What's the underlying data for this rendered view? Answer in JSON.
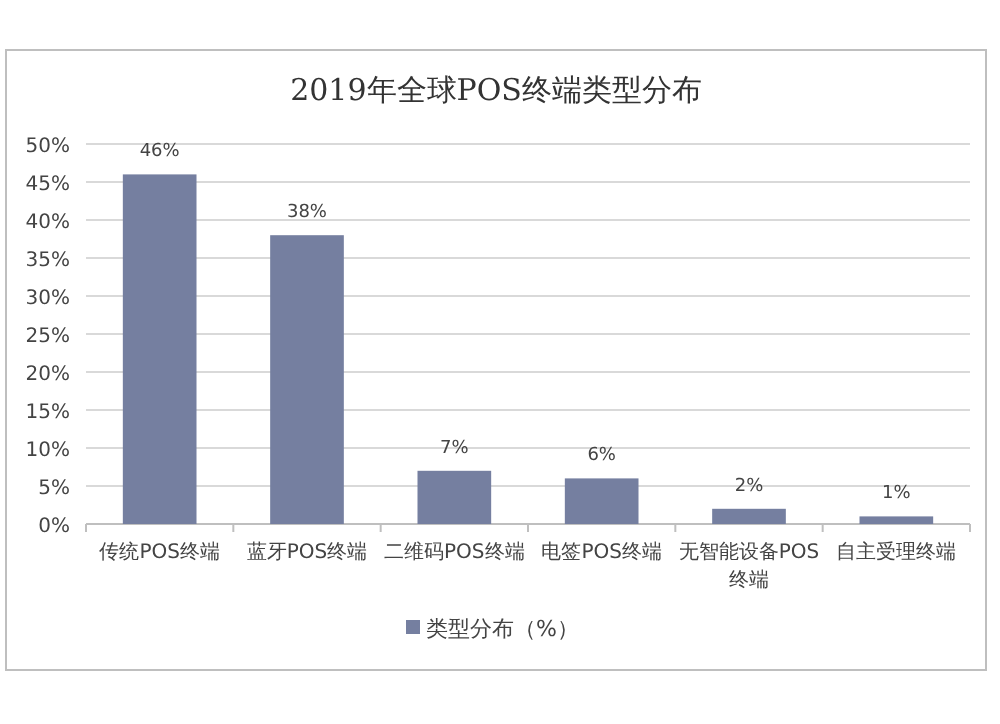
{
  "chart_data": {
    "type": "bar",
    "title": "2019年全球POS终端类型分布",
    "categories": [
      "传统POS终端",
      "蓝牙POS终端",
      "二维码POS终端",
      "电签POS终端",
      "无智能设备POS终端",
      "自主受理终端"
    ],
    "series": [
      {
        "name": "类型分布（%）",
        "color": "#757fa0",
        "values": [
          46,
          38,
          7,
          6,
          2,
          1
        ],
        "value_labels": [
          "46%",
          "38%",
          "7%",
          "6%",
          "2%",
          "1%"
        ]
      }
    ],
    "ylim": [
      0,
      50
    ],
    "yticks": [
      {
        "value": 0,
        "label": "0%"
      },
      {
        "value": 5,
        "label": "5%"
      },
      {
        "value": 10,
        "label": "10%"
      },
      {
        "value": 15,
        "label": "15%"
      },
      {
        "value": 20,
        "label": "20%"
      },
      {
        "value": 25,
        "label": "25%"
      },
      {
        "value": 30,
        "label": "30%"
      },
      {
        "value": 35,
        "label": "35%"
      },
      {
        "value": 40,
        "label": "40%"
      },
      {
        "value": 45,
        "label": "45%"
      },
      {
        "value": 50,
        "label": "50%"
      }
    ],
    "grid": "y",
    "legend": "bottom"
  }
}
